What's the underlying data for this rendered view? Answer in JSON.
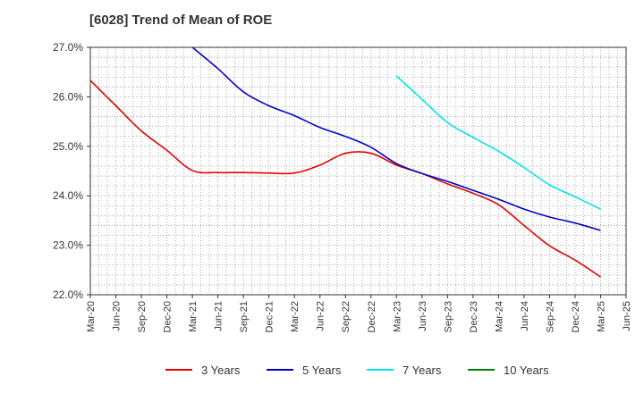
{
  "chart_data": {
    "type": "line",
    "title": "[6028]  Trend of Mean of ROE",
    "xlabel": "",
    "ylabel": "",
    "x": [
      "Mar-20",
      "Jun-20",
      "Sep-20",
      "Dec-20",
      "Mar-21",
      "Jun-21",
      "Sep-21",
      "Dec-21",
      "Mar-22",
      "Jun-22",
      "Sep-22",
      "Dec-22",
      "Mar-23",
      "Jun-23",
      "Sep-23",
      "Dec-23",
      "Mar-24",
      "Jun-24",
      "Sep-24",
      "Dec-24",
      "Mar-25",
      "Jun-25"
    ],
    "ylim": [
      22.0,
      27.0
    ],
    "yticks": [
      "27.0%",
      "26.0%",
      "25.0%",
      "24.0%",
      "23.0%",
      "22.0%"
    ],
    "ytick_values": [
      27,
      26,
      25,
      24,
      23,
      22
    ],
    "grid": true,
    "legend_position": "bottom",
    "series": [
      {
        "name": "3 Years",
        "color": "#e60000",
        "values": [
          26.33,
          25.82,
          25.31,
          24.92,
          24.51,
          24.47,
          24.47,
          24.46,
          24.46,
          24.62,
          24.86,
          24.86,
          24.62,
          24.45,
          24.24,
          24.05,
          23.82,
          23.4,
          22.99,
          22.7,
          22.36,
          null
        ]
      },
      {
        "name": "5 Years",
        "color": "#0000c8",
        "values": [
          null,
          null,
          null,
          null,
          27.0,
          26.57,
          26.1,
          25.82,
          25.62,
          25.38,
          25.2,
          24.98,
          24.65,
          24.45,
          24.29,
          24.11,
          23.93,
          23.73,
          23.57,
          23.45,
          23.3,
          null
        ]
      },
      {
        "name": "7 Years",
        "color": "#00e5e5",
        "values": [
          null,
          null,
          null,
          null,
          null,
          null,
          null,
          null,
          null,
          null,
          null,
          null,
          26.42,
          25.95,
          25.48,
          25.18,
          24.9,
          24.57,
          24.22,
          23.98,
          23.73,
          null
        ]
      },
      {
        "name": "10 Years",
        "color": "#008000",
        "values": [
          null,
          null,
          null,
          null,
          null,
          null,
          null,
          null,
          null,
          null,
          null,
          null,
          null,
          null,
          null,
          null,
          null,
          null,
          null,
          null,
          null,
          null
        ]
      }
    ]
  }
}
